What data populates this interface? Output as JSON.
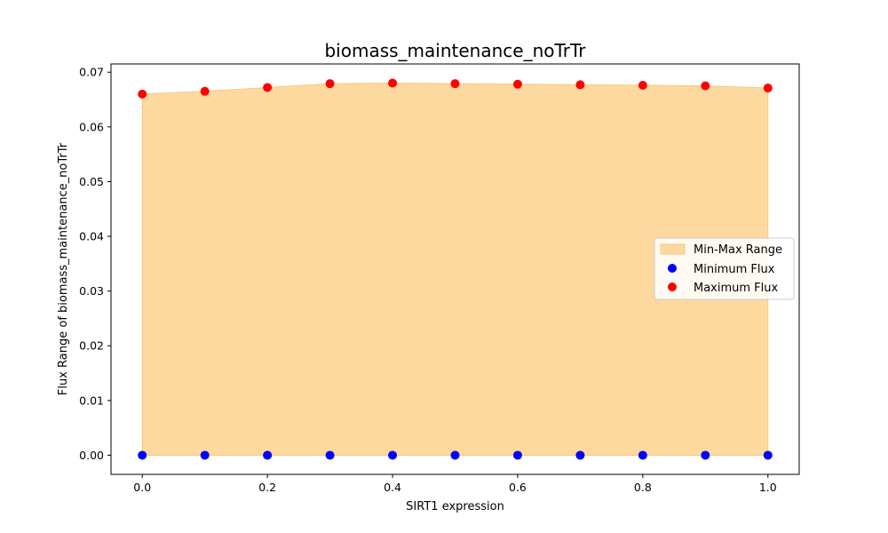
{
  "chart_data": {
    "type": "scatter",
    "title": "biomass_maintenance_noTrTr",
    "xlabel": "SIRT1 expression",
    "ylabel": "Flux Range of biomass_maintenance_noTrTr",
    "xlim": [
      -0.05,
      1.05
    ],
    "ylim": [
      -0.0035,
      0.0715
    ],
    "x_ticks": [
      "0.0",
      "0.2",
      "0.4",
      "0.6",
      "0.8",
      "1.0"
    ],
    "y_ticks": [
      "0.00",
      "0.01",
      "0.02",
      "0.03",
      "0.04",
      "0.05",
      "0.06",
      "0.07"
    ],
    "x": [
      0.0,
      0.1,
      0.2,
      0.3,
      0.4,
      0.5,
      0.6,
      0.7,
      0.8,
      0.9,
      1.0
    ],
    "series": [
      {
        "name": "Min-Max Range",
        "kind": "area",
        "color": "#fdd9a0"
      },
      {
        "name": "Minimum Flux",
        "kind": "scatter",
        "color": "#0000ff",
        "values": [
          0,
          0,
          0,
          0,
          0,
          0,
          0,
          0,
          0,
          0,
          0
        ]
      },
      {
        "name": "Maximum Flux",
        "kind": "scatter",
        "color": "#ff0000",
        "values": [
          0.066,
          0.0665,
          0.0672,
          0.0679,
          0.068,
          0.0679,
          0.0678,
          0.0677,
          0.0676,
          0.0675,
          0.0671
        ]
      }
    ],
    "legend_position": "center-right",
    "grid": false
  }
}
